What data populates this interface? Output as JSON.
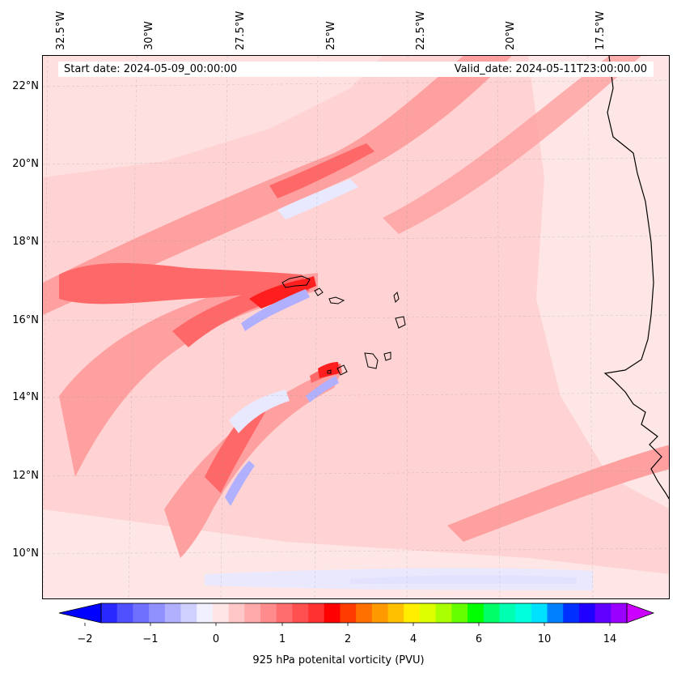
{
  "map": {
    "banner": {
      "start_date": "Start date: 2024-05-09_00:00:00",
      "valid_date": "Valid_date: 2024-05-11T23:00:00.00"
    },
    "longitude_labels": [
      "32.5°W",
      "30°W",
      "27.5°W",
      "25°W",
      "22.5°W",
      "20°W",
      "17.5°W"
    ],
    "latitude_labels": [
      "22°N",
      "20°N",
      "18°N",
      "16°N",
      "14°N",
      "12°N",
      "10°N"
    ],
    "field_colors": {
      "background_fill": "#ffd3d3",
      "light_pink": "#ffe6e6",
      "mid_red": "#ffa0a0",
      "strong_red": "#ff6868",
      "bright_red": "#ff1e1e",
      "light_blue": "#e8e8ff",
      "mid_blue": "#b0b0ff"
    }
  },
  "colorbar": {
    "title": "925 hPa potenital vorticity (PVU)",
    "tick_labels": [
      "−2",
      "−1",
      "0",
      "1",
      "2",
      "4",
      "6",
      "10",
      "14"
    ],
    "colors": [
      "#0000ff",
      "#2828ff",
      "#5050ff",
      "#7070ff",
      "#9090ff",
      "#b0b0ff",
      "#d0d0ff",
      "#f0f0ff",
      "#ffe6e6",
      "#ffc8c8",
      "#ffaaaa",
      "#ff8c8c",
      "#ff6e6e",
      "#ff5050",
      "#ff3232",
      "#ff0000",
      "#ff3c00",
      "#ff7000",
      "#ff9900",
      "#ffc000",
      "#ffee00",
      "#ddff00",
      "#aaff00",
      "#66ff00",
      "#00ff00",
      "#00ff66",
      "#00ffb0",
      "#00ffdd",
      "#00e0ff",
      "#0080ff",
      "#0030ff",
      "#2000ff",
      "#6000ff",
      "#9900ff",
      "#cc00ff"
    ],
    "extend_low_color": "#0000ff",
    "extend_high_color": "#cc00ff"
  }
}
